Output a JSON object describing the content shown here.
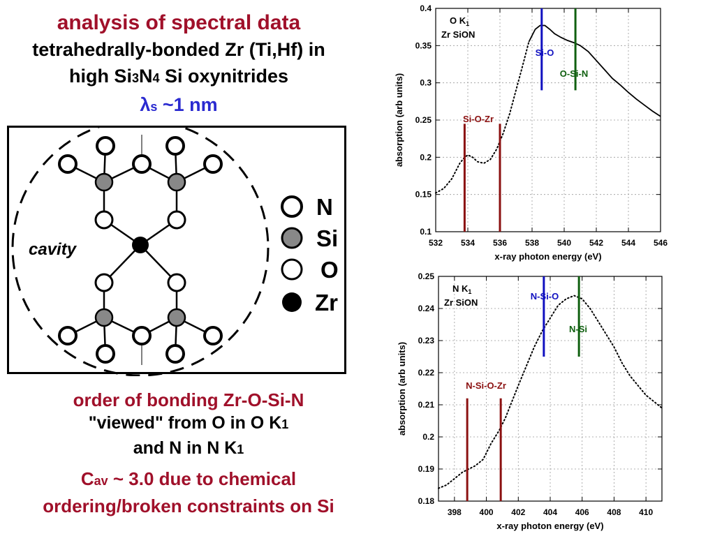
{
  "title": {
    "line1": "analysis of spectral data",
    "line2": "tetrahedrally-bonded Zr (Ti,Hf) in",
    "line3_a": "high Si",
    "line3_sub1": "3",
    "line3_b": "N",
    "line3_sub2": "4",
    "line3_c": " Si oxynitrides",
    "line4_lambda": "λ",
    "line4_sub": "s",
    "line4_rest": " ~1 nm"
  },
  "molecule": {
    "cavity_label": "cavity",
    "legend": [
      {
        "label": "N",
        "fill": "#ffffff"
      },
      {
        "label": "Si",
        "fill": "#888888"
      },
      {
        "label": "O",
        "fill": "#ffffff"
      },
      {
        "label": "Zr",
        "fill": "#000000"
      }
    ]
  },
  "bottom": {
    "line1": "order of bonding Zr-O-Si-N",
    "line2_a": "\"viewed\" from O in O K",
    "line2_sub": "1",
    "line3_a": "and N in N K",
    "line3_sub": "1",
    "line4_a": "C",
    "line4_sub": "av",
    "line4_b": " ~ 3.0 due to chemical",
    "line5": "ordering/broken constraints on Si"
  },
  "colors": {
    "title_red": "#a0102a",
    "title_blue": "#2a2ad0",
    "line_darkred": "#8b1010",
    "line_blue": "#1010c0",
    "line_green": "#106010"
  },
  "chart_data": [
    {
      "type": "line",
      "inset_label_1": "O K",
      "inset_label_1_sub": "1",
      "inset_label_2": "Zr SiON",
      "xlabel": "x-ray photon energy (eV)",
      "ylabel": "absorption (arb units)",
      "xlim": [
        532,
        546
      ],
      "ylim": [
        0.1,
        0.4
      ],
      "xticks": [
        532,
        534,
        536,
        538,
        540,
        542,
        544,
        546
      ],
      "xtick_labels": [
        "532",
        "534",
        "536",
        "538",
        "540",
        "542",
        "544",
        "546"
      ],
      "yticks": [
        0.1,
        0.15,
        0.2,
        0.25,
        0.3,
        0.35,
        0.4
      ],
      "ytick_labels": [
        "0.1",
        "0.15",
        "0.2",
        "0.25",
        "0.3",
        "0.35",
        "0.4"
      ],
      "grid": true,
      "series": [
        {
          "style": "dotted",
          "x": [
            532,
            532.5,
            533,
            533.5,
            533.8,
            534,
            534.3,
            534.6,
            535,
            535.4,
            535.8,
            536.2,
            536.6,
            537,
            537.4,
            537.8
          ],
          "y": [
            0.152,
            0.158,
            0.171,
            0.192,
            0.2,
            0.203,
            0.2,
            0.194,
            0.192,
            0.197,
            0.211,
            0.232,
            0.258,
            0.29,
            0.322,
            0.355
          ]
        },
        {
          "style": "solid",
          "x": [
            537.8,
            538.2,
            538.5,
            538.8,
            539.1,
            539.4,
            539.8,
            540.2,
            540.6,
            541,
            541.5,
            542,
            542.5,
            543,
            543.5,
            544,
            544.5,
            545,
            545.5,
            546
          ],
          "y": [
            0.355,
            0.372,
            0.377,
            0.377,
            0.372,
            0.366,
            0.361,
            0.357,
            0.354,
            0.35,
            0.342,
            0.33,
            0.318,
            0.306,
            0.297,
            0.287,
            0.278,
            0.27,
            0.262,
            0.255
          ]
        }
      ],
      "markers": [
        {
          "label": "Si-O-Zr",
          "x": 533.8,
          "color": "#8b1010",
          "y0": 0.1,
          "y1": 0.245
        },
        {
          "label": "",
          "x": 536.0,
          "color": "#8b1010",
          "y0": 0.1,
          "y1": 0.245
        },
        {
          "label": "Si-O",
          "x": 538.6,
          "color": "#1010c0",
          "y0": 0.29,
          "y1": 0.4
        },
        {
          "label": "O-Si-N",
          "x": 540.7,
          "color": "#106010",
          "y0": 0.29,
          "y1": 0.4
        }
      ]
    },
    {
      "type": "line",
      "inset_label_1": "N K",
      "inset_label_1_sub": "1",
      "inset_label_2": "Zr SiON",
      "xlabel": "x-ray photon energy (eV)",
      "ylabel": "absorption (arb units)",
      "xlim": [
        397,
        411
      ],
      "ylim": [
        0.18,
        0.25
      ],
      "xticks": [
        398,
        400,
        402,
        404,
        406,
        408,
        410
      ],
      "xtick_labels": [
        "398",
        "400",
        "402",
        "404",
        "406",
        "408",
        "410"
      ],
      "yticks": [
        0.18,
        0.19,
        0.2,
        0.21,
        0.22,
        0.23,
        0.24,
        0.25
      ],
      "ytick_labels": [
        "0.18",
        "0.19",
        "0.2",
        "0.21",
        "0.22",
        "0.23",
        "0.24",
        "0.25"
      ],
      "grid": true,
      "series": [
        {
          "style": "dotted",
          "x": [
            397,
            397.5,
            398,
            398.5,
            398.9,
            399.3,
            399.8,
            400.3,
            400.8,
            401.2,
            401.6,
            402,
            402.5,
            403,
            403.5,
            404,
            404.5,
            405,
            405.5,
            406,
            406.5,
            407,
            407.5,
            408,
            408.5,
            409,
            409.5,
            410,
            410.5,
            411
          ],
          "y": [
            0.184,
            0.185,
            0.187,
            0.189,
            0.19,
            0.191,
            0.193,
            0.198,
            0.202,
            0.206,
            0.211,
            0.216,
            0.222,
            0.228,
            0.233,
            0.237,
            0.241,
            0.243,
            0.244,
            0.243,
            0.24,
            0.236,
            0.232,
            0.228,
            0.223,
            0.219,
            0.216,
            0.213,
            0.211,
            0.209
          ]
        }
      ],
      "markers": [
        {
          "label": "N-Si-O-Zr",
          "x": 398.8,
          "color": "#8b1010",
          "y0": 0.18,
          "y1": 0.212
        },
        {
          "label": "",
          "x": 400.9,
          "color": "#8b1010",
          "y0": 0.18,
          "y1": 0.212
        },
        {
          "label": "N-Si-O",
          "x": 403.6,
          "color": "#1010c0",
          "y0": 0.225,
          "y1": 0.25
        },
        {
          "label": "N-Si",
          "x": 405.8,
          "color": "#106010",
          "y0": 0.225,
          "y1": 0.25
        }
      ]
    }
  ]
}
